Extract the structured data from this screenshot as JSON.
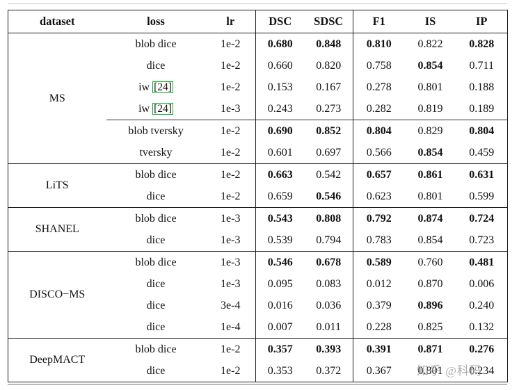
{
  "colors": {
    "table_border": "#1c1c1c",
    "citation_box_green": "#00b21f",
    "watermark_gray": "#9e9e9e",
    "background": "#ffffff"
  },
  "watermark": {
    "text": "知乎 @科码"
  },
  "table": {
    "headers": [
      "dataset",
      "loss",
      "lr",
      "DSC",
      "SDSC",
      "F1",
      "IS",
      "IP"
    ],
    "groups": [
      {
        "dataset": "MS",
        "cline_before_row": 4,
        "rows": [
          {
            "loss": "blob dice",
            "cite": null,
            "lr": "1e-2",
            "cells": [
              {
                "t": "0.680",
                "b": true
              },
              {
                "t": "0.848",
                "b": true
              },
              {
                "t": "0.810",
                "b": true
              },
              {
                "t": "0.822",
                "b": false
              },
              {
                "t": "0.828",
                "b": true
              }
            ]
          },
          {
            "loss": "dice",
            "cite": null,
            "lr": "1e-2",
            "cells": [
              {
                "t": "0.660",
                "b": false
              },
              {
                "t": "0.820",
                "b": false
              },
              {
                "t": "0.758",
                "b": false
              },
              {
                "t": "0.854",
                "b": true
              },
              {
                "t": "0.711",
                "b": false
              }
            ]
          },
          {
            "loss": "iw",
            "cite": "[24]",
            "lr": "1e-2",
            "cells": [
              {
                "t": "0.153",
                "b": false
              },
              {
                "t": "0.167",
                "b": false
              },
              {
                "t": "0.278",
                "b": false
              },
              {
                "t": "0.801",
                "b": false
              },
              {
                "t": "0.188",
                "b": false
              }
            ]
          },
          {
            "loss": "iw",
            "cite": "[24]",
            "lr": "1e-3",
            "cells": [
              {
                "t": "0.243",
                "b": false
              },
              {
                "t": "0.273",
                "b": false
              },
              {
                "t": "0.282",
                "b": false
              },
              {
                "t": "0.819",
                "b": false
              },
              {
                "t": "0.189",
                "b": false
              }
            ]
          },
          {
            "loss": "blob tversky",
            "cite": null,
            "lr": "1e-2",
            "cells": [
              {
                "t": "0.690",
                "b": true
              },
              {
                "t": "0.852",
                "b": true
              },
              {
                "t": "0.804",
                "b": true
              },
              {
                "t": "0.829",
                "b": false
              },
              {
                "t": "0.804",
                "b": true
              }
            ]
          },
          {
            "loss": "tversky",
            "cite": null,
            "lr": "1e-2",
            "cells": [
              {
                "t": "0.601",
                "b": false
              },
              {
                "t": "0.697",
                "b": false
              },
              {
                "t": "0.566",
                "b": false
              },
              {
                "t": "0.854",
                "b": true
              },
              {
                "t": "0.459",
                "b": false
              }
            ]
          }
        ]
      },
      {
        "dataset": "LiTS",
        "cline_before_row": null,
        "rows": [
          {
            "loss": "blob dice",
            "cite": null,
            "lr": "1e-2",
            "cells": [
              {
                "t": "0.663",
                "b": true
              },
              {
                "t": "0.542",
                "b": false
              },
              {
                "t": "0.657",
                "b": true
              },
              {
                "t": "0.861",
                "b": true
              },
              {
                "t": "0.631",
                "b": true
              }
            ]
          },
          {
            "loss": "dice",
            "cite": null,
            "lr": "1e-2",
            "cells": [
              {
                "t": "0.659",
                "b": false
              },
              {
                "t": "0.546",
                "b": true
              },
              {
                "t": "0.623",
                "b": false
              },
              {
                "t": "0.801",
                "b": false
              },
              {
                "t": "0.599",
                "b": false
              }
            ]
          }
        ]
      },
      {
        "dataset": "SHANEL",
        "cline_before_row": null,
        "rows": [
          {
            "loss": "blob dice",
            "cite": null,
            "lr": "1e-3",
            "cells": [
              {
                "t": "0.543",
                "b": true
              },
              {
                "t": "0.808",
                "b": true
              },
              {
                "t": "0.792",
                "b": true
              },
              {
                "t": "0.874",
                "b": true
              },
              {
                "t": "0.724",
                "b": true
              }
            ]
          },
          {
            "loss": "dice",
            "cite": null,
            "lr": "1e-3",
            "cells": [
              {
                "t": "0.539",
                "b": false
              },
              {
                "t": "0.794",
                "b": false
              },
              {
                "t": "0.783",
                "b": false
              },
              {
                "t": "0.854",
                "b": false
              },
              {
                "t": "0.723",
                "b": false
              }
            ]
          }
        ]
      },
      {
        "dataset": "DISCO−MS",
        "cline_before_row": null,
        "rows": [
          {
            "loss": "blob dice",
            "cite": null,
            "lr": "1e-3",
            "cells": [
              {
                "t": "0.546",
                "b": true
              },
              {
                "t": "0.678",
                "b": true
              },
              {
                "t": "0.589",
                "b": true
              },
              {
                "t": "0.760",
                "b": false
              },
              {
                "t": "0.481",
                "b": true
              }
            ]
          },
          {
            "loss": "dice",
            "cite": null,
            "lr": "1e-3",
            "cells": [
              {
                "t": "0.095",
                "b": false
              },
              {
                "t": "0.083",
                "b": false
              },
              {
                "t": "0.012",
                "b": false
              },
              {
                "t": "0.870",
                "b": false
              },
              {
                "t": "0.006",
                "b": false
              }
            ]
          },
          {
            "loss": "dice",
            "cite": null,
            "lr": "3e-4",
            "cells": [
              {
                "t": "0.016",
                "b": false
              },
              {
                "t": "0.036",
                "b": false
              },
              {
                "t": "0.379",
                "b": false
              },
              {
                "t": "0.896",
                "b": true
              },
              {
                "t": "0.240",
                "b": false
              }
            ]
          },
          {
            "loss": "dice",
            "cite": null,
            "lr": "1e-4",
            "cells": [
              {
                "t": "0.007",
                "b": false
              },
              {
                "t": "0.011",
                "b": false
              },
              {
                "t": "0.228",
                "b": false
              },
              {
                "t": "0.825",
                "b": false
              },
              {
                "t": "0.132",
                "b": false
              }
            ]
          }
        ]
      },
      {
        "dataset": "DeepMACT",
        "cline_before_row": null,
        "rows": [
          {
            "loss": "blob dice",
            "cite": null,
            "lr": "1e-2",
            "cells": [
              {
                "t": "0.357",
                "b": true
              },
              {
                "t": "0.393",
                "b": true
              },
              {
                "t": "0.391",
                "b": true
              },
              {
                "t": "0.871",
                "b": true
              },
              {
                "t": "0.276",
                "b": true
              }
            ]
          },
          {
            "loss": "dice",
            "cite": null,
            "lr": "1e-2",
            "cells": [
              {
                "t": "0.353",
                "b": false
              },
              {
                "t": "0.372",
                "b": false
              },
              {
                "t": "0.367",
                "b": false
              },
              {
                "t": "0.801",
                "b": false
              },
              {
                "t": "0.234",
                "b": false
              }
            ]
          }
        ]
      }
    ]
  }
}
